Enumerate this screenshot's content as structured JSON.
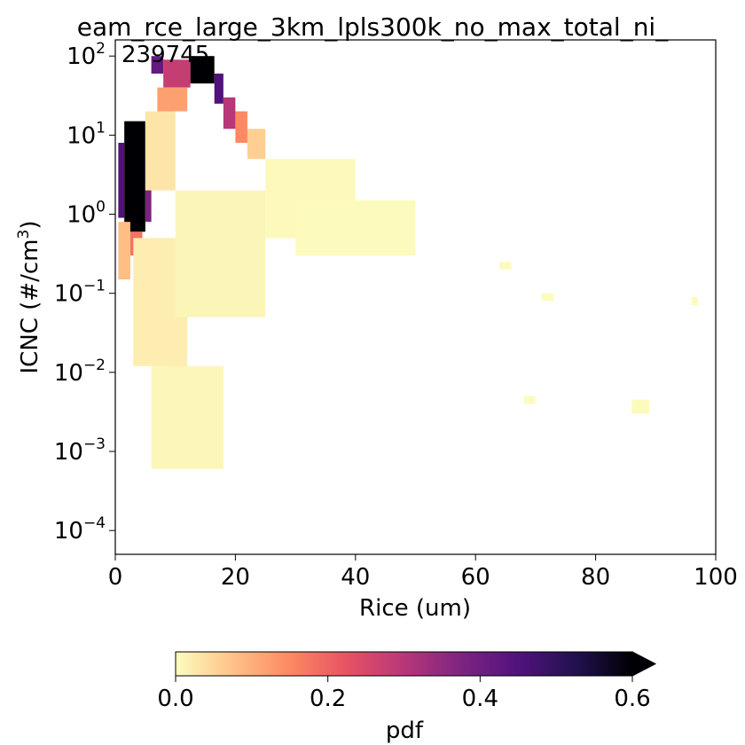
{
  "chart_data": {
    "type": "heatmap",
    "title": "eam_rce_large_3km_lpls300k_no_max_total_ni_",
    "annotation": "239745",
    "xlabel": "Rice (um)",
    "ylabel_main": "ICNC (#/cm",
    "ylabel_sup": "3",
    "ylabel_end": ")",
    "xlim": [
      0,
      100
    ],
    "ylim": [
      5e-05,
      160
    ],
    "yscale": "log",
    "x_ticks": [
      {
        "value": 0,
        "label": "0"
      },
      {
        "value": 20,
        "label": "20"
      },
      {
        "value": 40,
        "label": "40"
      },
      {
        "value": 60,
        "label": "60"
      },
      {
        "value": 80,
        "label": "80"
      },
      {
        "value": 100,
        "label": "100"
      }
    ],
    "y_ticks": [
      {
        "value": 0.0001,
        "base": "10",
        "exp": "−4"
      },
      {
        "value": 0.001,
        "base": "10",
        "exp": "−3"
      },
      {
        "value": 0.01,
        "base": "10",
        "exp": "−2"
      },
      {
        "value": 0.1,
        "base": "10",
        "exp": "−1"
      },
      {
        "value": 1,
        "base": "10",
        "exp": "0"
      },
      {
        "value": 10,
        "base": "10",
        "exp": "1"
      },
      {
        "value": 100,
        "base": "10",
        "exp": "2"
      }
    ],
    "colorbar": {
      "label": "pdf",
      "colormap": "magma_r",
      "range": [
        0,
        0.6
      ],
      "extend": "max",
      "ticks": [
        {
          "value": 0.0,
          "label": "0.0"
        },
        {
          "value": 0.2,
          "label": "0.2"
        },
        {
          "value": 0.4,
          "label": "0.4"
        },
        {
          "value": 0.6,
          "label": "0.6"
        }
      ]
    },
    "colormap_stops": [
      "#fcfdbf",
      "#fec287",
      "#fc8961",
      "#e75263",
      "#b73779",
      "#7e2482",
      "#51127c",
      "#221150",
      "#000004"
    ],
    "cells": [
      {
        "x": 1.5,
        "x2": 5,
        "y": 0.6,
        "y2": 15,
        "v": 0.7
      },
      {
        "x": 0.5,
        "x2": 1.5,
        "y": 0.9,
        "y2": 8,
        "v": 0.45
      },
      {
        "x": 5,
        "x2": 6,
        "y": 0.8,
        "y2": 5,
        "v": 0.38
      },
      {
        "x": 2.5,
        "x2": 4.5,
        "y": 0.3,
        "y2": 0.6,
        "v": 0.18
      },
      {
        "x": 0.5,
        "x2": 2.5,
        "y": 0.15,
        "y2": 0.8,
        "v": 0.08
      },
      {
        "x": 12.5,
        "x2": 16.5,
        "y": 45,
        "y2": 100,
        "v": 0.7
      },
      {
        "x": 6,
        "x2": 8,
        "y": 60,
        "y2": 100,
        "v": 0.42
      },
      {
        "x": 8,
        "x2": 12.5,
        "y": 40,
        "y2": 90,
        "v": 0.28
      },
      {
        "x": 16.5,
        "x2": 18,
        "y": 25,
        "y2": 60,
        "v": 0.45
      },
      {
        "x": 18,
        "x2": 20,
        "y": 12,
        "y2": 30,
        "v": 0.3
      },
      {
        "x": 20,
        "x2": 22,
        "y": 8,
        "y2": 20,
        "v": 0.15
      },
      {
        "x": 7,
        "x2": 12,
        "y": 20,
        "y2": 40,
        "v": 0.12
      },
      {
        "x": 22,
        "x2": 25,
        "y": 5,
        "y2": 12,
        "v": 0.06
      },
      {
        "x": 5,
        "x2": 10,
        "y": 2,
        "y2": 20,
        "v": 0.03
      },
      {
        "x": 3,
        "x2": 12,
        "y": 0.012,
        "y2": 0.5,
        "v": 0.02
      },
      {
        "x": 8,
        "x2": 12,
        "y": 0.008,
        "y2": 0.012,
        "v": 0.06
      },
      {
        "x": 10,
        "x2": 25,
        "y": 0.05,
        "y2": 2,
        "v": 0.01
      },
      {
        "x": 6,
        "x2": 18,
        "y": 0.0006,
        "y2": 0.012,
        "v": 0.008
      },
      {
        "x": 25,
        "x2": 40,
        "y": 0.5,
        "y2": 5,
        "v": 0.005
      },
      {
        "x": 30,
        "x2": 50,
        "y": 0.3,
        "y2": 1.5,
        "v": 0.003
      },
      {
        "x": 96,
        "x2": 97,
        "y": 0.07,
        "y2": 0.09,
        "v": 0.002
      },
      {
        "x": 86,
        "x2": 89,
        "y": 0.003,
        "y2": 0.0045,
        "v": 0.002
      },
      {
        "x": 71,
        "x2": 73,
        "y": 0.08,
        "y2": 0.1,
        "v": 0.002
      },
      {
        "x": 64,
        "x2": 66,
        "y": 0.2,
        "y2": 0.25,
        "v": 0.002
      },
      {
        "x": 68,
        "x2": 70,
        "y": 0.004,
        "y2": 0.005,
        "v": 0.002
      }
    ]
  }
}
